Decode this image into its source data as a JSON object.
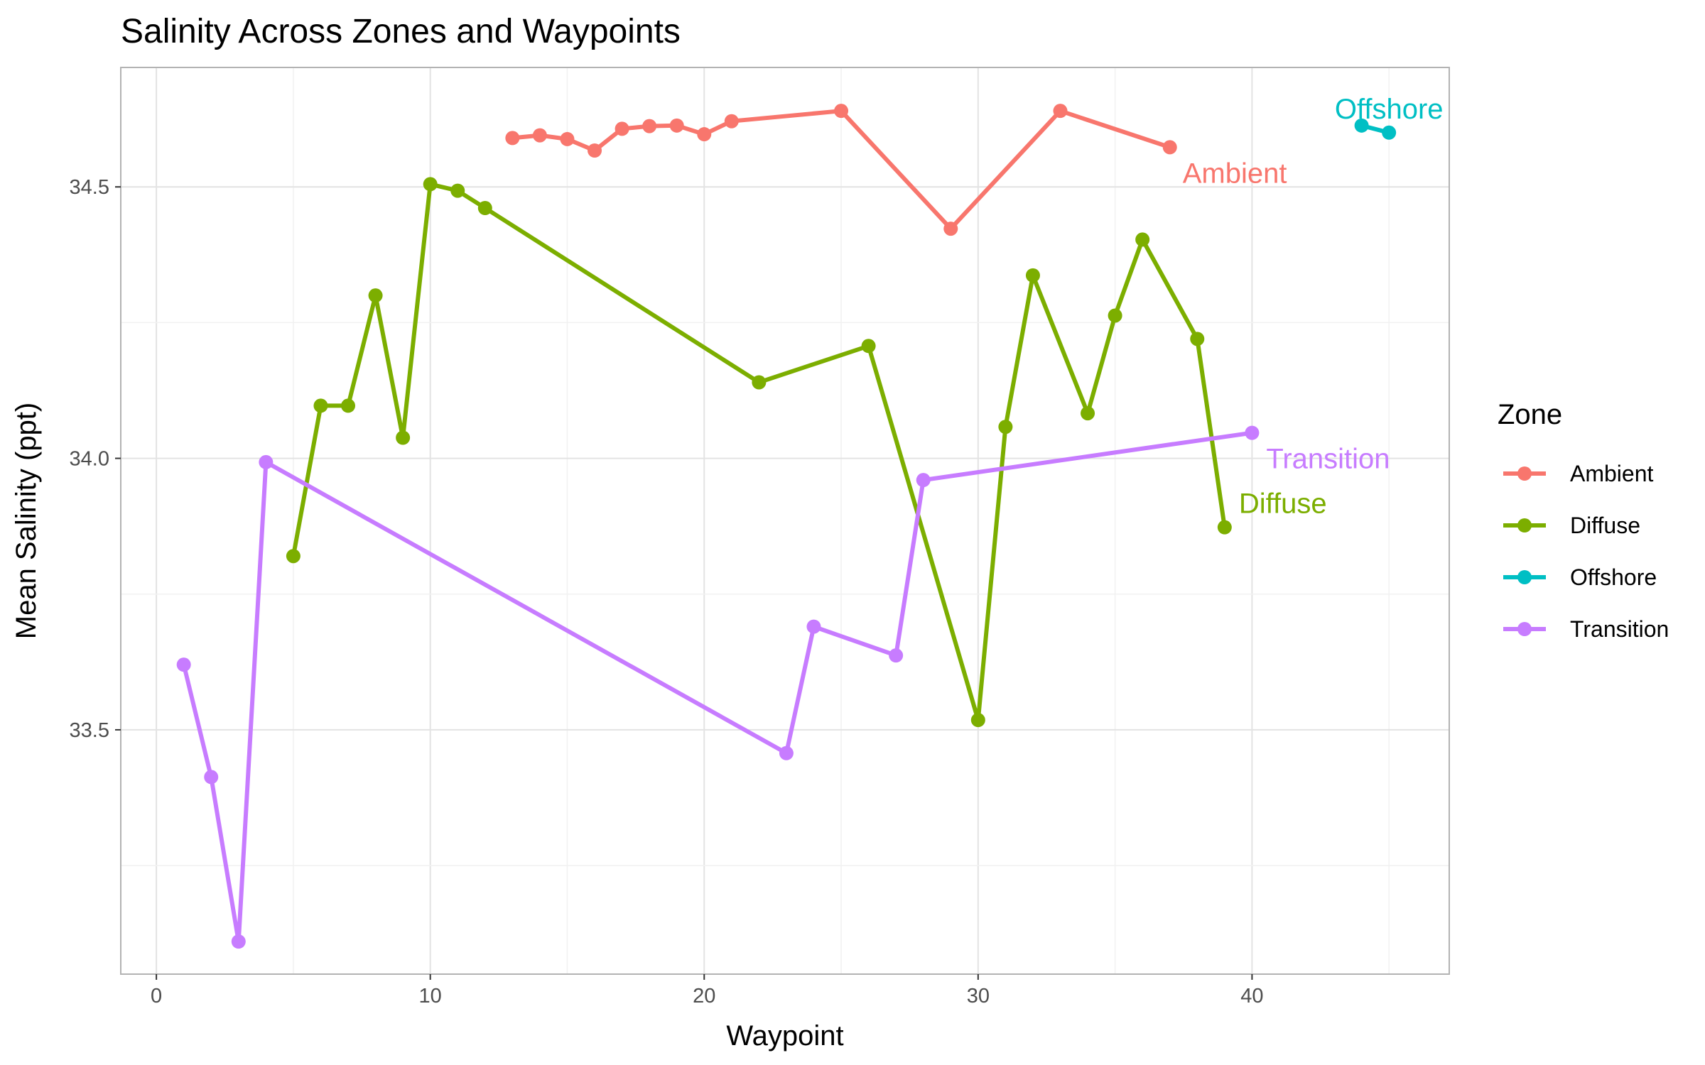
{
  "chart_data": {
    "type": "line",
    "title": "Salinity Across Zones and Waypoints",
    "xlabel": "Waypoint",
    "ylabel": "Mean Salinity (ppt)",
    "xlim": [
      -1.3,
      47.2
    ],
    "ylim": [
      33.05,
      34.72
    ],
    "x_ticks": [
      0,
      10,
      20,
      30,
      40
    ],
    "y_ticks": [
      33.5,
      34.0,
      34.5
    ],
    "x_tick_labels": [
      "0",
      "10",
      "20",
      "30",
      "40"
    ],
    "y_tick_labels": [
      "33.5",
      "34.0",
      "34.5"
    ],
    "grid": true,
    "legend": {
      "title": "Zone",
      "position": "right"
    },
    "series": [
      {
        "name": "Ambient",
        "color": "#F8766D",
        "points": [
          [
            13,
            34.59
          ],
          [
            14,
            34.595
          ],
          [
            15,
            34.588
          ],
          [
            16,
            34.567
          ],
          [
            17,
            34.607
          ],
          [
            18,
            34.612
          ],
          [
            19,
            34.613
          ],
          [
            20,
            34.597
          ],
          [
            21,
            34.621
          ],
          [
            25,
            34.64
          ],
          [
            29,
            34.423
          ],
          [
            33,
            34.64
          ],
          [
            37,
            34.573
          ]
        ]
      },
      {
        "name": "Diffuse",
        "color": "#7CAE00",
        "points": [
          [
            5,
            33.82
          ],
          [
            6,
            34.097
          ],
          [
            7,
            34.097
          ],
          [
            8,
            34.3
          ],
          [
            9,
            34.038
          ],
          [
            10,
            34.505
          ],
          [
            11,
            34.493
          ],
          [
            12,
            34.461
          ],
          [
            22,
            34.14
          ],
          [
            26,
            34.207
          ],
          [
            30,
            33.518
          ],
          [
            31,
            34.058
          ],
          [
            32,
            34.337
          ],
          [
            34,
            34.083
          ],
          [
            35,
            34.263
          ],
          [
            36,
            34.403
          ],
          [
            38,
            34.22
          ],
          [
            39,
            33.873
          ]
        ]
      },
      {
        "name": "Offshore",
        "color": "#00BFC4",
        "points": [
          [
            44,
            34.613
          ],
          [
            45,
            34.6
          ]
        ]
      },
      {
        "name": "Transition",
        "color": "#C77CFF",
        "points": [
          [
            1,
            33.62
          ],
          [
            2,
            33.413
          ],
          [
            3,
            33.11
          ],
          [
            4,
            33.993
          ],
          [
            23,
            33.457
          ],
          [
            24,
            33.69
          ],
          [
            27,
            33.637
          ],
          [
            28,
            33.96
          ],
          [
            40,
            34.047
          ]
        ]
      }
    ],
    "annotations": [
      {
        "text": "Ambient",
        "series": "Ambient"
      },
      {
        "text": "Diffuse",
        "series": "Diffuse"
      },
      {
        "text": "Offshore",
        "series": "Offshore"
      },
      {
        "text": "Transition",
        "series": "Transition"
      }
    ]
  }
}
